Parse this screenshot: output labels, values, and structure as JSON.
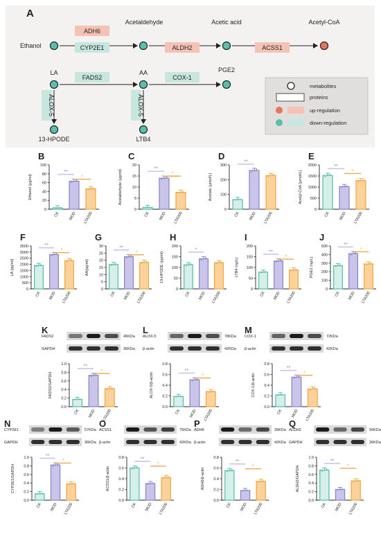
{
  "colors": {
    "teal": "#5bbfae",
    "teal_fill": "#d7efe9",
    "purple": "#8d87c9",
    "purple_fill": "#c9c4ea",
    "orange": "#f0a84a",
    "orange_fill": "#fbd39a",
    "red": "#e8735f",
    "pink_box": "#f5c2b5",
    "green_box": "#c6e6de",
    "panel_bg": "#f3f2f1"
  },
  "diagram": {
    "panel_label": "A",
    "nodes": {
      "ethanol": "Ethanol",
      "acetaldehyde": "Acetaldehyde",
      "acetic_acid": "Acetic acid",
      "acetyl_coa": "Acetyl-CoA",
      "la": "LA",
      "aa": "AA",
      "pge2": "PGE2",
      "hpode": "13-HPODE",
      "ltb4": "LTB4"
    },
    "proteins": {
      "adh6": "ADH6",
      "cyp2e1": "CYP2E1",
      "aldh2": "ALDH2",
      "acss1": "ACSS1",
      "fads2": "FADS2",
      "cox1": "COX-1",
      "alox5_a": "ALOX-5",
      "alox5_b": "ALOX-5"
    },
    "legend": {
      "metabolites": "metabolites",
      "proteins": "proteins",
      "up": "up-regulation",
      "down": "down-regulation"
    }
  },
  "groups": [
    "CK",
    "MOD",
    "LTA200"
  ],
  "chart_data": [
    {
      "type": "bar",
      "panel": "B",
      "ylabel": "Ethanol (μg/ml)",
      "yticks": [
        "0",
        "20",
        "40",
        "60",
        "80",
        "100"
      ],
      "ylim": [
        0,
        100
      ],
      "values": [
        3,
        63,
        46
      ],
      "stars": [
        "**",
        "*"
      ]
    },
    {
      "type": "bar",
      "panel": "C",
      "ylabel": "Acetaldehyde (μg/ml)",
      "yticks": [
        "0",
        "5",
        "10",
        "15",
        "20"
      ],
      "ylim": [
        0,
        20
      ],
      "values": [
        0.8,
        14,
        7.6
      ],
      "stars": [
        "**",
        "*"
      ]
    },
    {
      "type": "bar",
      "panel": "D",
      "ylabel": "Acetate (μmol/L)",
      "yticks": [
        "0",
        "100",
        "200",
        "300"
      ],
      "ylim": [
        0,
        300
      ],
      "values": [
        65,
        262,
        228
      ],
      "stars": [
        "**",
        ""
      ]
    },
    {
      "type": "bar",
      "panel": "E",
      "ylabel": "Acetyl-CoA (μmol/L)",
      "yticks": [
        "0",
        "500",
        "1000",
        "1500",
        "2000"
      ],
      "ylim": [
        0,
        2000
      ],
      "values": [
        1520,
        1020,
        1290
      ],
      "stars": [
        "**",
        "*"
      ]
    },
    {
      "type": "bar",
      "panel": "F",
      "ylabel": "LA (pg/ml)",
      "yticks": [
        "0",
        "500",
        "1000",
        "1500",
        "2000",
        "2500",
        "3000",
        "3500"
      ],
      "ylim": [
        0,
        3500
      ],
      "values": [
        1900,
        2800,
        2300
      ],
      "stars": [
        "**",
        "*"
      ]
    },
    {
      "type": "bar",
      "panel": "G",
      "ylabel": "AA(pg/ml)",
      "yticks": [
        "0",
        "5",
        "10",
        "15",
        "20",
        "25",
        "30"
      ],
      "ylim": [
        0,
        30
      ],
      "values": [
        17,
        22.5,
        18.5
      ],
      "stars": [
        "**",
        "*"
      ]
    },
    {
      "type": "bar",
      "panel": "H",
      "ylabel": "13-HPODE (pg/ml)",
      "yticks": [
        "0",
        "50",
        "100",
        "150",
        "200"
      ],
      "ylim": [
        0,
        200
      ],
      "values": [
        112,
        140,
        122
      ],
      "stars": [
        "*",
        ""
      ]
    },
    {
      "type": "bar",
      "panel": "I",
      "ylabel": "LTB4 (ng/L)",
      "yticks": [
        "0",
        "50",
        "100",
        "150",
        "200"
      ],
      "ylim": [
        0,
        200
      ],
      "values": [
        78,
        130,
        88
      ],
      "stars": [
        "**",
        "*"
      ]
    },
    {
      "type": "bar",
      "panel": "J",
      "ylabel": "PGE2 (ng/L)",
      "yticks": [
        "0",
        "100",
        "200",
        "300",
        "400",
        "500"
      ],
      "ylim": [
        0,
        500
      ],
      "values": [
        270,
        410,
        290
      ],
      "stars": [
        "**",
        "*"
      ]
    },
    {
      "type": "bar",
      "panel": "K",
      "ylabel": "FADS2/GAPDH",
      "yticks": [
        "0.0",
        "0.2",
        "0.4",
        "0.6",
        "0.8",
        "1.0"
      ],
      "ylim": [
        0,
        1
      ],
      "values": [
        0.17,
        0.73,
        0.42
      ],
      "stars": [
        "**",
        "*"
      ],
      "blot": [
        {
          "name": "FADS2",
          "kda": "46KDa"
        },
        {
          "name": "GAPDH",
          "kda": "36KDa"
        }
      ]
    },
    {
      "type": "bar",
      "panel": "L",
      "ylabel": "ALOX-5/β-actin",
      "yticks": [
        "0.0",
        "0.2",
        "0.4",
        "0.6",
        "0.8"
      ],
      "ylim": [
        0,
        0.8
      ],
      "values": [
        0.19,
        0.5,
        0.28
      ],
      "stars": [
        "**",
        "*"
      ],
      "blot": [
        {
          "name": "ALOX-5",
          "kda": "78KDa"
        },
        {
          "name": "β-actin",
          "kda": "42KDa"
        }
      ]
    },
    {
      "type": "bar",
      "panel": "M",
      "ylabel": "COX-1/β-actin",
      "yticks": [
        "0.0",
        "0.2",
        "0.4",
        "0.6",
        "0.8"
      ],
      "ylim": [
        0,
        0.8
      ],
      "values": [
        0.22,
        0.55,
        0.33
      ],
      "stars": [
        "**",
        "*"
      ],
      "blot": [
        {
          "name": "COX-1",
          "kda": "72KDa"
        },
        {
          "name": "β-actin",
          "kda": "42KDa"
        }
      ]
    },
    {
      "type": "bar",
      "panel": "N",
      "ylabel": "CYP2E1/GAPDH",
      "yticks": [
        "0.0",
        "0.2",
        "0.4",
        "0.6",
        "0.8",
        "1.0"
      ],
      "ylim": [
        0,
        1
      ],
      "values": [
        0.15,
        0.82,
        0.38
      ],
      "stars": [
        "**",
        "*"
      ],
      "blot": [
        {
          "name": "CYP2E1",
          "kda": "57KDa"
        },
        {
          "name": "GAPDH",
          "kda": "36KDa"
        }
      ]
    },
    {
      "type": "bar",
      "panel": "O",
      "ylabel": "ACSS1/β-actin",
      "yticks": [
        "0.0",
        "0.2",
        "0.4",
        "0.6",
        "0.8"
      ],
      "ylim": [
        0,
        0.8
      ],
      "values": [
        0.6,
        0.31,
        0.42
      ],
      "stars": [
        "**",
        "*"
      ],
      "blot": [
        {
          "name": "ACSS1",
          "kda": "75KDa"
        },
        {
          "name": "β-actin",
          "kda": "42KDa"
        }
      ]
    },
    {
      "type": "bar",
      "panel": "P",
      "ylabel": "ADH6/β-actin",
      "yticks": [
        "0.0",
        "0.2",
        "0.4",
        "0.6",
        "0.8"
      ],
      "ylim": [
        0,
        0.8
      ],
      "values": [
        0.55,
        0.18,
        0.35
      ],
      "stars": [
        "**",
        "*"
      ],
      "blot": [
        {
          "name": "ADH6",
          "kda": "39KDa"
        },
        {
          "name": "β-actin",
          "kda": "42KDa"
        }
      ]
    },
    {
      "type": "bar",
      "panel": "Q",
      "ylabel": "ALDH2/GAPDH",
      "yticks": [
        "0.0",
        "0.2",
        "0.4",
        "0.6",
        "0.8",
        "1.0"
      ],
      "ylim": [
        0,
        1
      ],
      "values": [
        0.7,
        0.25,
        0.45
      ],
      "stars": [
        "**",
        "*"
      ],
      "blot": [
        {
          "name": "ALDH2",
          "kda": "56KDa"
        },
        {
          "name": "GAPDH",
          "kda": "36KDa"
        }
      ]
    }
  ]
}
